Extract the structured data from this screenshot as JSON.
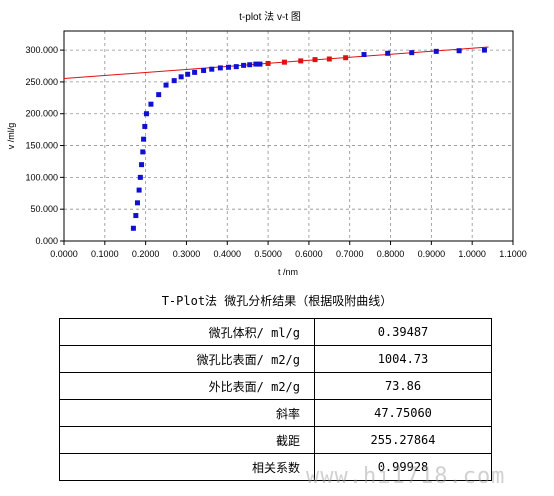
{
  "chart_data": {
    "type": "scatter",
    "title": "t-plot 法 v-t 图",
    "xlabel": "t /nm",
    "ylabel": "v /ml/g",
    "xlim": [
      0,
      1.1
    ],
    "ylim": [
      0,
      330
    ],
    "x_ticks": [
      "0.0000",
      "0.1000",
      "0.2000",
      "0.3000",
      "0.4000",
      "0.5000",
      "0.6000",
      "0.7000",
      "0.8000",
      "0.9000",
      "1.0000",
      "1.1000"
    ],
    "y_ticks": [
      "0.000",
      "50.000",
      "100.000",
      "150.000",
      "200.000",
      "250.000",
      "300.000"
    ],
    "grid": true,
    "series": [
      {
        "color": "#1010d0",
        "marker": "square",
        "points": [
          [
            0.17,
            20
          ],
          [
            0.176,
            40
          ],
          [
            0.18,
            60
          ],
          [
            0.184,
            80
          ],
          [
            0.187,
            100
          ],
          [
            0.19,
            120
          ],
          [
            0.193,
            140
          ],
          [
            0.195,
            160
          ],
          [
            0.198,
            180
          ],
          [
            0.202,
            200
          ],
          [
            0.213,
            215
          ],
          [
            0.232,
            230
          ],
          [
            0.25,
            245
          ],
          [
            0.27,
            252
          ],
          [
            0.287,
            258
          ],
          [
            0.303,
            262
          ],
          [
            0.32,
            265
          ],
          [
            0.342,
            268
          ],
          [
            0.362,
            270
          ],
          [
            0.383,
            272
          ],
          [
            0.403,
            273
          ],
          [
            0.422,
            274
          ],
          [
            0.44,
            276
          ],
          [
            0.455,
            277
          ],
          [
            0.47,
            278
          ],
          [
            0.48,
            278
          ],
          [
            0.735,
            293
          ],
          [
            0.793,
            295
          ],
          [
            0.852,
            296
          ],
          [
            0.912,
            298
          ],
          [
            0.968,
            299
          ],
          [
            1.03,
            300
          ]
        ]
      },
      {
        "color": "#e01010",
        "marker": "square",
        "points": [
          [
            0.5,
            279
          ],
          [
            0.54,
            281
          ],
          [
            0.58,
            283
          ],
          [
            0.615,
            285
          ],
          [
            0.65,
            286
          ],
          [
            0.69,
            288
          ]
        ]
      },
      {
        "color": "#e01010",
        "marker": "line",
        "slope": 47.7506,
        "intercept": 255.27864,
        "x_range": [
          0,
          1.04
        ]
      }
    ]
  },
  "results": {
    "title": "T-Plot法 微孔分析结果（根据吸附曲线）",
    "rows": [
      {
        "label": "微孔体积/ ml/g",
        "value": "0.39487"
      },
      {
        "label": "微孔比表面/ m2/g",
        "value": "1004.73"
      },
      {
        "label": "外比表面/ m2/g",
        "value": "73.86"
      },
      {
        "label": "斜率",
        "value": "47.75060"
      },
      {
        "label": "截距",
        "value": "255.27864"
      },
      {
        "label": "相关系数",
        "value": "0.99928"
      }
    ]
  },
  "watermark": "www.hi1718.com"
}
